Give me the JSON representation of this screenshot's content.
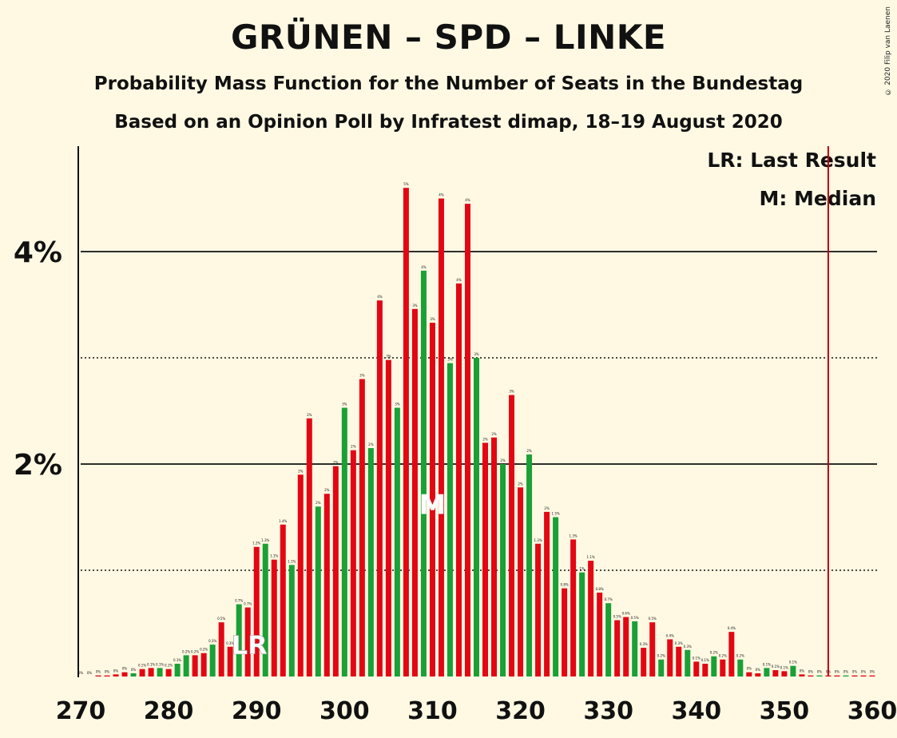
{
  "title": "GRÜNEN – SPD – LINKE",
  "subtitle_1": "Probability Mass Function for the Number of Seats in the Bundestag",
  "subtitle_2": "Based on an Opinion Poll by Infratest dimap, 18–19 August 2020",
  "copyright": "© 2020 Filip van Laenen",
  "legend": {
    "last_result": "LR: Last Result",
    "median": "M: Median"
  },
  "chart_data": {
    "type": "bar",
    "x_range": [
      270,
      360
    ],
    "y_range": [
      0,
      5
    ],
    "x_ticks": [
      270,
      280,
      290,
      300,
      310,
      320,
      330,
      340,
      350,
      360
    ],
    "x_tick_labels": [
      "270",
      "280",
      "290",
      "300",
      "310",
      "320",
      "330",
      "340",
      "350",
      "360"
    ],
    "y_ticks_labeled": [
      2,
      4
    ],
    "y_tick_labels": [
      "2%",
      "4%"
    ],
    "y_gridlines_solid": [
      2,
      4
    ],
    "y_gridlines_dotted": [
      1,
      3
    ],
    "majority_line": 355,
    "last_result_seat": 289,
    "last_result_label": "LR",
    "median_seat": 310,
    "median_label": "M",
    "colors": {
      "red": "#e30613",
      "green": "#1aa037",
      "majority_line": "#c0000f",
      "background": "#fff9e3"
    },
    "seats": [
      270,
      271,
      272,
      273,
      274,
      275,
      276,
      277,
      278,
      279,
      280,
      281,
      282,
      283,
      284,
      285,
      286,
      287,
      288,
      289,
      290,
      291,
      292,
      293,
      294,
      295,
      296,
      297,
      298,
      299,
      300,
      301,
      302,
      303,
      304,
      305,
      306,
      307,
      308,
      309,
      310,
      311,
      312,
      313,
      314,
      315,
      316,
      317,
      318,
      319,
      320,
      321,
      322,
      323,
      324,
      325,
      326,
      327,
      328,
      329,
      330,
      331,
      332,
      333,
      334,
      335,
      336,
      337,
      338,
      339,
      340,
      341,
      342,
      343,
      344,
      345,
      346,
      347,
      348,
      349,
      350,
      351,
      352,
      353,
      354,
      355,
      356,
      357,
      358,
      359,
      360
    ],
    "values": [
      0,
      0,
      0.01,
      0.01,
      0.02,
      0.04,
      0.03,
      0.07,
      0.08,
      0.08,
      0.07,
      0.12,
      0.2,
      0.2,
      0.22,
      0.3,
      0.51,
      0.28,
      0.68,
      0.65,
      1.22,
      1.25,
      1.1,
      1.43,
      1.05,
      1.9,
      2.43,
      1.6,
      1.72,
      1.98,
      2.53,
      2.13,
      2.8,
      2.15,
      3.54,
      2.98,
      2.53,
      4.6,
      3.46,
      3.82,
      3.33,
      4.5,
      2.95,
      3.7,
      4.45,
      3.0,
      2.2,
      2.25,
      2.0,
      2.65,
      1.78,
      2.09,
      1.25,
      1.55,
      1.5,
      0.83,
      1.29,
      0.98,
      1.09,
      0.79,
      0.69,
      0.53,
      0.56,
      0.52,
      0.27,
      0.51,
      0.16,
      0.35,
      0.28,
      0.25,
      0.14,
      0.12,
      0.19,
      0.16,
      0.42,
      0.16,
      0.04,
      0.03,
      0.08,
      0.06,
      0.05,
      0.1,
      0.02,
      0.01,
      0.01,
      0.01,
      0.01,
      0.01,
      0.01,
      0.01,
      0.01
    ],
    "value_labels": [
      "0%",
      "0%",
      "0%",
      "0%",
      "0%",
      "0%",
      "0%",
      "0.1%",
      "0.1%",
      "0.1%",
      "0.1%",
      "0.1%",
      "0.2%",
      "0.2%",
      "0.2%",
      "0.3%",
      "0.5%",
      "0.3%",
      "0.7%",
      "0.7%",
      "1.2%",
      "1.3%",
      "1.1%",
      "1.4%",
      "1.1%",
      "2%",
      "2%",
      "2%",
      "2%",
      "2%",
      "3%",
      "2%",
      "3%",
      "2%",
      "4%",
      "3%",
      "3%",
      "5%",
      "3%",
      "4%",
      "3%",
      "4%",
      "3%",
      "4%",
      "4%",
      "3%",
      "2%",
      "2%",
      "2%",
      "3%",
      "2%",
      "2%",
      "1.3%",
      "2%",
      "1.5%",
      "0.8%",
      "1.3%",
      "1%",
      "1.1%",
      "0.8%",
      "0.7%",
      "0.5%",
      "0.6%",
      "0.5%",
      "0.3%",
      "0.5%",
      "0.2%",
      "0.4%",
      "0.3%",
      "0.3%",
      "0.1%",
      "0.1%",
      "0.2%",
      "0.2%",
      "0.4%",
      "0.2%",
      "0%",
      "0%",
      "0.1%",
      "0.1%",
      "0.1%",
      "0.1%",
      "0%",
      "0%",
      "0%",
      "0%",
      "0%",
      "0%",
      "0%",
      "0%",
      "0%"
    ],
    "bar_colors": [
      "red",
      "red",
      "red",
      "red",
      "red",
      "red",
      "green",
      "red",
      "red",
      "green",
      "red",
      "green",
      "green",
      "red",
      "red",
      "green",
      "red",
      "red",
      "green",
      "red",
      "red",
      "green",
      "red",
      "red",
      "green",
      "red",
      "red",
      "green",
      "red",
      "red",
      "green",
      "red",
      "red",
      "green",
      "red",
      "red",
      "green",
      "red",
      "red",
      "green",
      "red",
      "red",
      "green",
      "red",
      "red",
      "green",
      "red",
      "red",
      "green",
      "red",
      "red",
      "green",
      "red",
      "red",
      "green",
      "red",
      "red",
      "green",
      "red",
      "red",
      "green",
      "red",
      "red",
      "green",
      "red",
      "red",
      "green",
      "red",
      "red",
      "green",
      "red",
      "red",
      "green",
      "red",
      "red",
      "green",
      "red",
      "red",
      "green",
      "red",
      "red",
      "green",
      "red",
      "red",
      "green",
      "red",
      "red",
      "green",
      "red",
      "red",
      "red"
    ]
  }
}
